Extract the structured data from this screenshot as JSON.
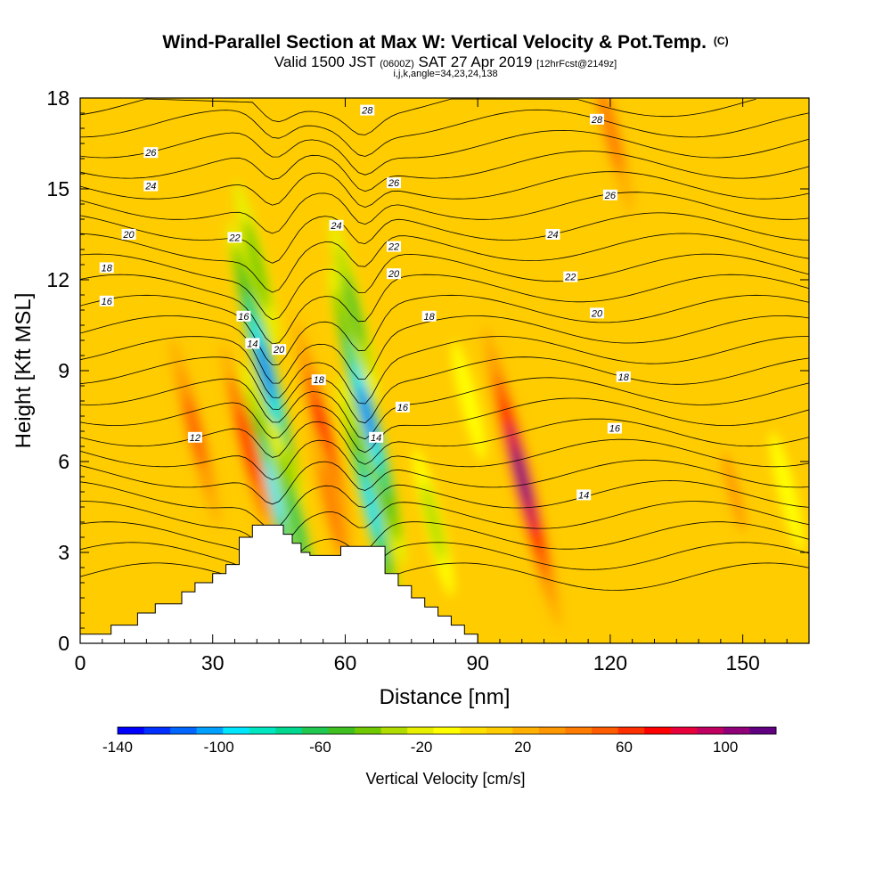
{
  "header": {
    "title": "Wind-Parallel Section at Max W: Vertical Velocity & Pot.Temp.",
    "title_unit": "(C)",
    "valid_prefix": "Valid 1500 JST",
    "valid_z": "(0600Z)",
    "valid_date": "SAT 27 Apr 2019",
    "fcst": "[12hrFcst@2149z]",
    "section_params": "i,j,k,angle=34,23,24,138"
  },
  "chart_data": {
    "type": "heatmap",
    "xlabel": "Distance [nm]",
    "ylabel": "Height [Kft MSL]",
    "xlim": [
      0,
      165
    ],
    "ylim": [
      0,
      18
    ],
    "x_ticks": [
      0,
      30,
      60,
      90,
      120,
      150
    ],
    "y_ticks": [
      0,
      3,
      6,
      9,
      12,
      15,
      18
    ],
    "background_value": 10,
    "fill_variable": "Vertical Velocity [cm/s]",
    "colorbar": {
      "label": "Vertical Velocity [cm/s]",
      "range": [
        -140,
        120
      ],
      "tick_values": [
        -140,
        -100,
        -60,
        -20,
        20,
        60,
        100
      ],
      "tick_labels": [
        "-140",
        "-100",
        "-60",
        "-20",
        "20",
        "60",
        "100"
      ],
      "colors": [
        "#0000ff",
        "#0030ff",
        "#0066ff",
        "#00a0ff",
        "#00e6ff",
        "#00e6c0",
        "#00d890",
        "#20c850",
        "#40c020",
        "#70c800",
        "#b0dc00",
        "#e8f000",
        "#ffff00",
        "#ffe000",
        "#ffcc00",
        "#ffb000",
        "#ff9800",
        "#ff7c00",
        "#ff5c00",
        "#ff3000",
        "#ff0000",
        "#e8003c",
        "#c00060",
        "#900078",
        "#600080"
      ]
    },
    "features": [
      {
        "x": 42,
        "y": 9,
        "value": -110
      },
      {
        "x": 44,
        "y": 5,
        "value": -90
      },
      {
        "x": 49,
        "y": 4,
        "value": -60
      },
      {
        "x": 55,
        "y": 7,
        "value": 70
      },
      {
        "x": 57,
        "y": 4.5,
        "value": 40
      },
      {
        "x": 65,
        "y": 7.5,
        "value": -110
      },
      {
        "x": 66,
        "y": 4.5,
        "value": -90
      },
      {
        "x": 62,
        "y": 11,
        "value": -50
      },
      {
        "x": 80,
        "y": 4,
        "value": -30
      },
      {
        "x": 100,
        "y": 5.5,
        "value": 110
      },
      {
        "x": 38,
        "y": 6.5,
        "value": 60
      },
      {
        "x": 26,
        "y": 7,
        "value": 50
      },
      {
        "x": 148,
        "y": 5,
        "value": 30
      },
      {
        "x": 88,
        "y": 8,
        "value": -15
      },
      {
        "x": 160,
        "y": 5,
        "value": -15
      },
      {
        "x": 40,
        "y": 12.5,
        "value": -40
      },
      {
        "x": 120,
        "y": 17,
        "value": 40
      }
    ],
    "terrain": [
      [
        0,
        0.3
      ],
      [
        7,
        0.3
      ],
      [
        7,
        0.6
      ],
      [
        13,
        0.6
      ],
      [
        13,
        1.0
      ],
      [
        17,
        1.0
      ],
      [
        17,
        1.3
      ],
      [
        23,
        1.3
      ],
      [
        23,
        1.7
      ],
      [
        26,
        1.7
      ],
      [
        26,
        2.0
      ],
      [
        30,
        2.0
      ],
      [
        30,
        2.3
      ],
      [
        33,
        2.3
      ],
      [
        33,
        2.6
      ],
      [
        36,
        2.6
      ],
      [
        36,
        3.5
      ],
      [
        39,
        3.5
      ],
      [
        39,
        3.9
      ],
      [
        46,
        3.9
      ],
      [
        46,
        3.6
      ],
      [
        48,
        3.6
      ],
      [
        48,
        3.3
      ],
      [
        50,
        3.3
      ],
      [
        50,
        3.0
      ],
      [
        52,
        3.0
      ],
      [
        52,
        2.9
      ],
      [
        59,
        2.9
      ],
      [
        59,
        3.2
      ],
      [
        69,
        3.2
      ],
      [
        69,
        2.3
      ],
      [
        72,
        2.3
      ],
      [
        72,
        1.9
      ],
      [
        75,
        1.9
      ],
      [
        75,
        1.5
      ],
      [
        78,
        1.5
      ],
      [
        78,
        1.2
      ],
      [
        81,
        1.2
      ],
      [
        81,
        0.9
      ],
      [
        84,
        0.9
      ],
      [
        84,
        0.6
      ],
      [
        87,
        0.6
      ],
      [
        87,
        0.3
      ],
      [
        90,
        0.3
      ]
    ],
    "contour_labels": [
      {
        "text": "28",
        "x": 65,
        "y": 17.6
      },
      {
        "text": "28",
        "x": 117,
        "y": 17.3
      },
      {
        "text": "26",
        "x": 16,
        "y": 16.2
      },
      {
        "text": "26",
        "x": 71,
        "y": 15.2
      },
      {
        "text": "26",
        "x": 120,
        "y": 14.8
      },
      {
        "text": "24",
        "x": 16,
        "y": 15.1
      },
      {
        "text": "24",
        "x": 58,
        "y": 13.8
      },
      {
        "text": "24",
        "x": 107,
        "y": 13.5
      },
      {
        "text": "22",
        "x": 35,
        "y": 13.4
      },
      {
        "text": "22",
        "x": 71,
        "y": 13.1
      },
      {
        "text": "22",
        "x": 111,
        "y": 12.1
      },
      {
        "text": "20",
        "x": 11,
        "y": 13.5
      },
      {
        "text": "20",
        "x": 71,
        "y": 12.2
      },
      {
        "text": "20",
        "x": 117,
        "y": 10.9
      },
      {
        "text": "20",
        "x": 45,
        "y": 9.7
      },
      {
        "text": "18",
        "x": 6,
        "y": 12.4
      },
      {
        "text": "18",
        "x": 54,
        "y": 8.7
      },
      {
        "text": "18",
        "x": 79,
        "y": 10.8
      },
      {
        "text": "18",
        "x": 123,
        "y": 8.8
      },
      {
        "text": "16",
        "x": 6,
        "y": 11.3
      },
      {
        "text": "16",
        "x": 37,
        "y": 10.8
      },
      {
        "text": "16",
        "x": 73,
        "y": 7.8
      },
      {
        "text": "16",
        "x": 121,
        "y": 7.1
      },
      {
        "text": "14",
        "x": 39,
        "y": 9.9
      },
      {
        "text": "14",
        "x": 67,
        "y": 6.8
      },
      {
        "text": "14",
        "x": 114,
        "y": 4.9
      },
      {
        "text": "12",
        "x": 26,
        "y": 6.8
      }
    ]
  }
}
